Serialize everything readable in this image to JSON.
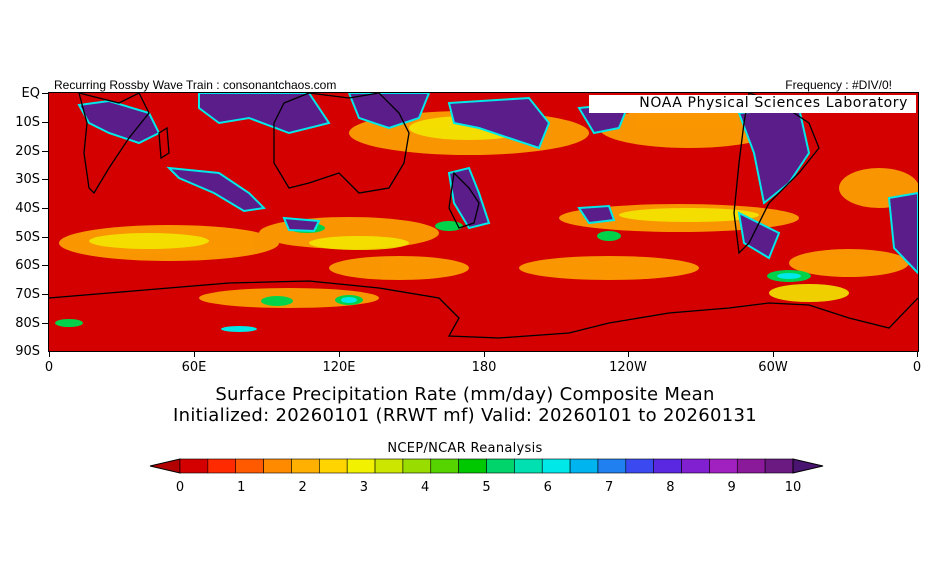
{
  "header": {
    "left_text": "Recurring Rossby Wave Train : consonantchaos.com",
    "right_text": "Frequency : #DIV/0!",
    "lab_label": "NOAA Physical Sciences Laboratory"
  },
  "map": {
    "projection": "equirectangular",
    "region": "Southern Hemisphere, EQ to 90S, 0 to 360E",
    "lat_labels": [
      "EQ",
      "10S",
      "20S",
      "30S",
      "40S",
      "50S",
      "60S",
      "70S",
      "80S",
      "90S"
    ],
    "lon_labels": [
      "0",
      "60E",
      "120E",
      "180",
      "120W",
      "60W",
      "0"
    ],
    "background_color": "#d40000",
    "highlight_colors": {
      "low": "#ff6a00",
      "mid": "#f2e600",
      "green": "#00d34a",
      "cyan": "#00e8e8",
      "high": "#5a1d8a"
    }
  },
  "titles": {
    "line1": "Surface Precipitation Rate (mm/day) Composite Mean",
    "line2": "Initialized: 20260101 (RRWT mf) Valid: 20260101 to 20260131",
    "source": "NCEP/NCAR Reanalysis"
  },
  "colorbar": {
    "labels": [
      "0",
      "1",
      "2",
      "3",
      "4",
      "5",
      "6",
      "7",
      "8",
      "9",
      "10"
    ],
    "colors": [
      "#d40000",
      "#ff2a00",
      "#ff5a00",
      "#ff8a00",
      "#ffb000",
      "#ffd400",
      "#f2f200",
      "#cce600",
      "#99dd00",
      "#55d400",
      "#00c800",
      "#00d46a",
      "#00e0b0",
      "#00e8e8",
      "#00b4f0",
      "#2080f0",
      "#3a4af0",
      "#5a28e0",
      "#8020d0",
      "#a020c0",
      "#8a1a9a",
      "#6a1a80"
    ],
    "under_color": "#b30000",
    "over_color": "#4a1570"
  }
}
